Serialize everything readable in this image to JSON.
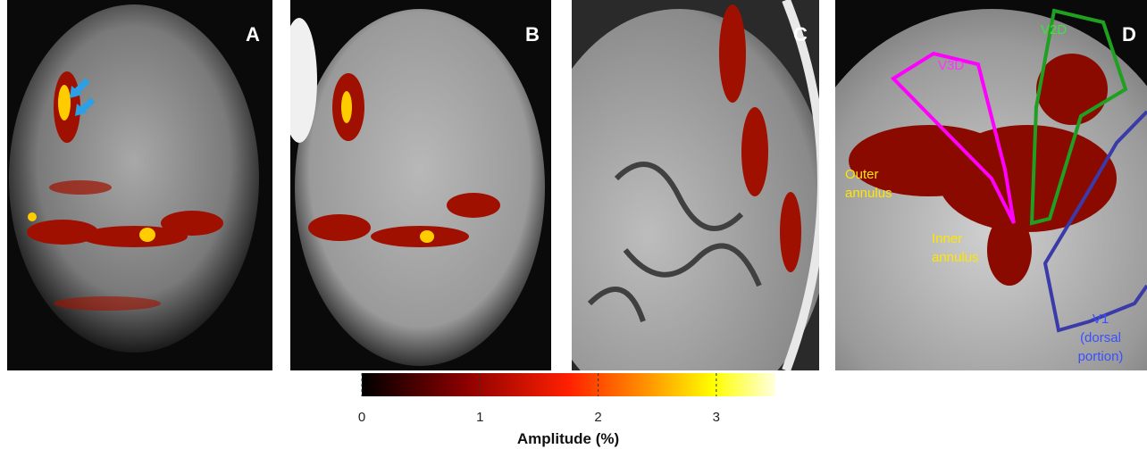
{
  "panels": [
    {
      "label": "A"
    },
    {
      "label": "B"
    },
    {
      "label": "C"
    },
    {
      "label": "D",
      "annotations": [
        {
          "lines": [
            "V3D"
          ]
        },
        {
          "lines": [
            "V2D"
          ]
        },
        {
          "lines": [
            "Outer",
            "annulus"
          ]
        },
        {
          "lines": [
            "Inner",
            "annulus"
          ]
        },
        {
          "lines": [
            "V1",
            "(dorsal",
            "portion)"
          ]
        }
      ]
    }
  ],
  "colorbar": {
    "label": "Amplitude (%)",
    "lim": [
      0,
      3.5
    ],
    "ticks": [
      0,
      1,
      2,
      3
    ]
  }
}
